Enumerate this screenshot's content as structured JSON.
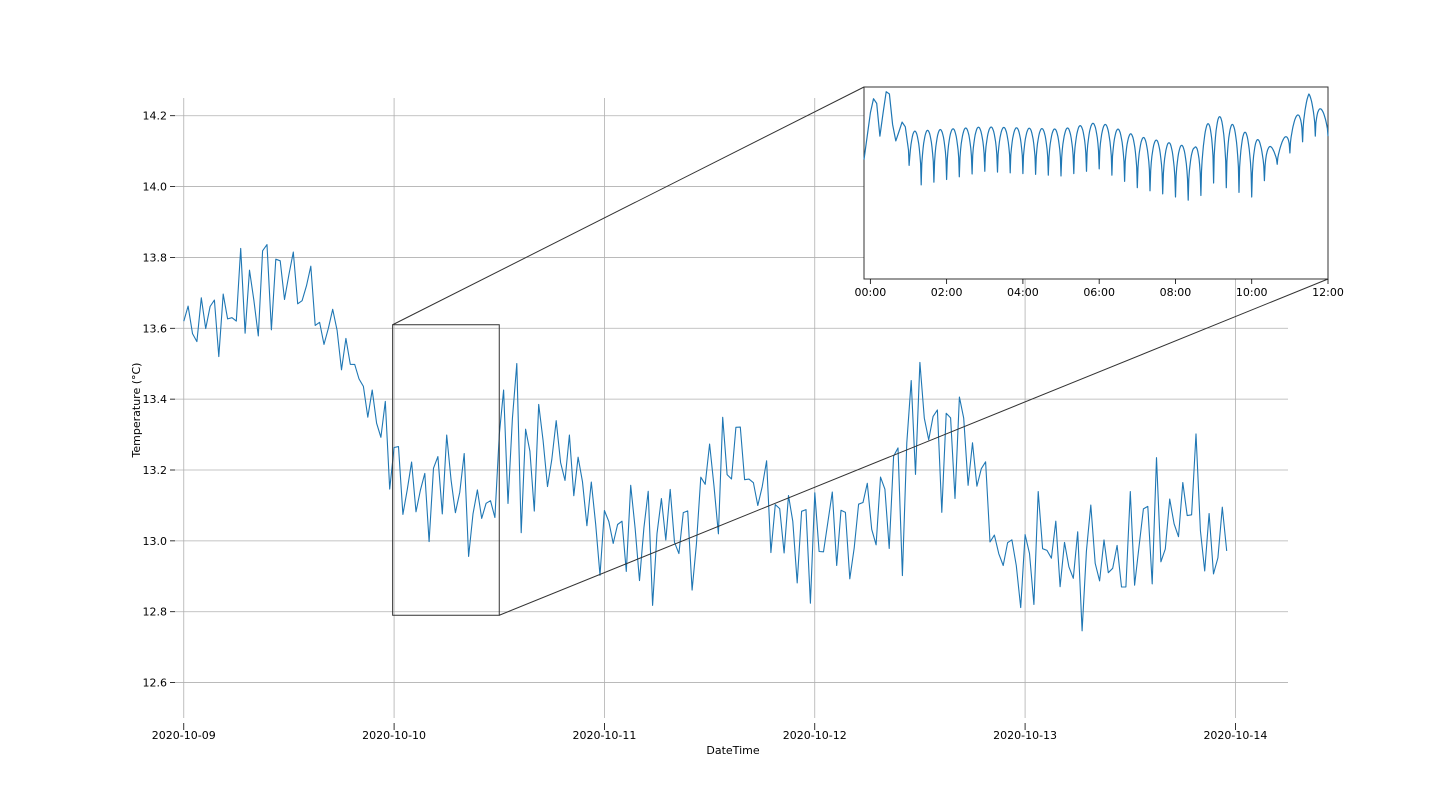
{
  "chart_data": [
    {
      "id": "main",
      "type": "line",
      "xlabel": "DateTime",
      "ylabel": "Temperature (°C)",
      "x_range": [
        "2020-10-08T23:00",
        "2020-10-14T06:00"
      ],
      "ylim": [
        12.5,
        14.25
      ],
      "y_ticks": [
        12.6,
        12.8,
        13.0,
        13.2,
        13.4,
        13.6,
        13.8,
        14.0,
        14.2
      ],
      "x_ticks": [
        "2020-10-09",
        "2020-10-10",
        "2020-10-11",
        "2020-10-12",
        "2020-10-13",
        "2020-10-14"
      ],
      "grid": true,
      "line_color": "#1f77b4",
      "series": [
        {
          "sampling_minutes": 30,
          "start": "2020-10-09T00:00",
          "segments": [
            {
              "t": "2020-10-09T00:00",
              "mean": 13.6,
              "amp": 0.08
            },
            {
              "t": "2020-10-09T04:00",
              "mean": 13.62,
              "amp": 0.1
            },
            {
              "t": "2020-10-09T07:00",
              "mean": 13.68,
              "amp": 0.14
            },
            {
              "t": "2020-10-09T10:00",
              "mean": 13.7,
              "amp": 0.16
            },
            {
              "t": "2020-10-09T12:00",
              "mean": 13.72,
              "amp": 0.14
            },
            {
              "t": "2020-10-09T14:00",
              "mean": 13.68,
              "amp": 0.12
            },
            {
              "t": "2020-10-09T17:00",
              "mean": 13.62,
              "amp": 0.08
            },
            {
              "t": "2020-10-09T19:00",
              "mean": 13.52,
              "amp": 0.07
            },
            {
              "t": "2020-10-09T21:00",
              "mean": 13.4,
              "amp": 0.08
            },
            {
              "t": "2020-10-10T00:00",
              "mean": 13.22,
              "amp": 0.1
            },
            {
              "t": "2020-10-10T06:00",
              "mean": 13.12,
              "amp": 0.12
            },
            {
              "t": "2020-10-10T11:00",
              "mean": 13.1,
              "amp": 0.14
            },
            {
              "t": "2020-10-10T13:00",
              "mean": 13.3,
              "amp": 0.22
            },
            {
              "t": "2020-10-10T16:00",
              "mean": 13.3,
              "amp": 0.18
            },
            {
              "t": "2020-10-10T19:00",
              "mean": 13.2,
              "amp": 0.12
            },
            {
              "t": "2020-10-11T00:00",
              "mean": 13.05,
              "amp": 0.12
            },
            {
              "t": "2020-10-11T06:00",
              "mean": 13.0,
              "amp": 0.14
            },
            {
              "t": "2020-10-11T09:00",
              "mean": 12.95,
              "amp": 0.16
            },
            {
              "t": "2020-10-11T11:00",
              "mean": 13.2,
              "amp": 0.18
            },
            {
              "t": "2020-10-11T18:00",
              "mean": 13.2,
              "amp": 0.16
            },
            {
              "t": "2020-10-11T21:00",
              "mean": 13.0,
              "amp": 0.14
            },
            {
              "t": "2020-10-12T04:00",
              "mean": 13.02,
              "amp": 0.14
            },
            {
              "t": "2020-10-12T07:00",
              "mean": 13.0,
              "amp": 0.12
            },
            {
              "t": "2020-10-12T10:00",
              "mean": 13.3,
              "amp": 0.18
            },
            {
              "t": "2020-10-12T18:00",
              "mean": 13.3,
              "amp": 0.16
            },
            {
              "t": "2020-10-12T21:00",
              "mean": 13.0,
              "amp": 0.14
            },
            {
              "t": "2020-10-13T08:00",
              "mean": 12.95,
              "amp": 0.13
            },
            {
              "t": "2020-10-13T11:00",
              "mean": 12.9,
              "amp": 0.15
            },
            {
              "t": "2020-10-13T13:00",
              "mean": 13.0,
              "amp": 0.14
            },
            {
              "t": "2020-10-13T16:00",
              "mean": 13.1,
              "amp": 0.16
            },
            {
              "t": "2020-10-13T20:00",
              "mean": 13.1,
              "amp": 0.16
            },
            {
              "t": "2020-10-13T23:00",
              "mean": 12.95,
              "amp": 0.1
            }
          ]
        }
      ]
    },
    {
      "id": "inset",
      "type": "line",
      "x_range": [
        "2020-10-09T23:50",
        "2020-10-10T12:00"
      ],
      "x_ticks": [
        "00:00",
        "02:00",
        "04:00",
        "06:00",
        "08:00",
        "10:00",
        "12:00"
      ],
      "ylim": [
        12.79,
        13.61
      ],
      "line_color": "#1f77b4",
      "series": [
        {
          "points": [
            [
              "2020-10-09T23:50",
              13.3
            ],
            [
              "2020-10-09T23:55",
              13.4
            ],
            [
              "2020-10-10T00:00",
              13.5
            ],
            [
              "2020-10-10T00:05",
              13.56
            ],
            [
              "2020-10-10T00:10",
              13.54
            ],
            [
              "2020-10-10T00:15",
              13.4
            ],
            [
              "2020-10-10T00:20",
              13.5
            ],
            [
              "2020-10-10T00:25",
              13.59
            ],
            [
              "2020-10-10T00:30",
              13.58
            ],
            [
              "2020-10-10T00:35",
              13.45
            ],
            [
              "2020-10-10T00:40",
              13.38
            ],
            [
              "2020-10-10T00:45",
              13.42
            ],
            [
              "2020-10-10T00:50",
              13.46
            ],
            [
              "2020-10-10T00:55",
              13.44
            ],
            [
              "2020-10-10T01:00",
              13.34
            ]
          ],
          "pattern": {
            "start": "2020-10-10T01:00",
            "end": "2020-10-10T12:00",
            "period_minutes": 20,
            "knots": [
              {
                "t": "2020-10-10T01:00",
                "hi": 13.42,
                "lo": 13.18
              },
              {
                "t": "2020-10-10T03:00",
                "hi": 13.44,
                "lo": 13.25
              },
              {
                "t": "2020-10-10T05:00",
                "hi": 13.43,
                "lo": 13.23
              },
              {
                "t": "2020-10-10T06:00",
                "hi": 13.46,
                "lo": 13.26
              },
              {
                "t": "2020-10-10T07:00",
                "hi": 13.4,
                "lo": 13.18
              },
              {
                "t": "2020-10-10T08:30",
                "hi": 13.35,
                "lo": 13.12
              },
              {
                "t": "2020-10-10T09:00",
                "hi": 13.5,
                "lo": 13.2
              },
              {
                "t": "2020-10-10T10:00",
                "hi": 13.4,
                "lo": 13.14
              },
              {
                "t": "2020-10-10T10:40",
                "hi": 13.34,
                "lo": 13.28
              },
              {
                "t": "2020-10-10T11:30",
                "hi": 13.58,
                "lo": 13.4
              },
              {
                "t": "2020-10-10T12:00",
                "hi": 13.48,
                "lo": 13.4
              }
            ]
          }
        }
      ]
    }
  ]
}
